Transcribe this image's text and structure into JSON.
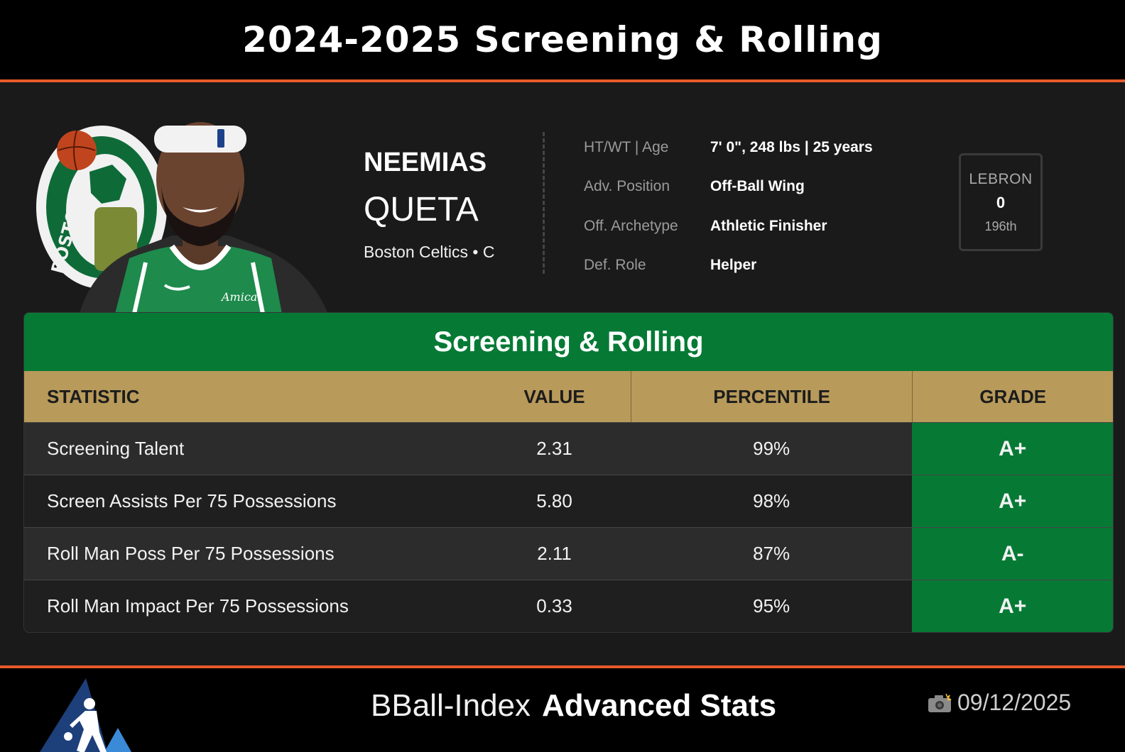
{
  "header": {
    "title": "2024-2025 Screening & Rolling"
  },
  "player": {
    "first_name": "NEEMIAS",
    "last_name": "QUETA",
    "team_position": "Boston Celtics • C",
    "team_logo_icon": "boston-celtics-logo-icon",
    "team_logo_text": "BOSTON",
    "jersey_text": "Amica"
  },
  "info": [
    {
      "label": "HT/WT | Age",
      "value": "7' 0\", 248 lbs | 25 years"
    },
    {
      "label": "Adv. Position",
      "value": "Off-Ball Wing"
    },
    {
      "label": "Off. Archetype",
      "value": "Athletic Finisher"
    },
    {
      "label": "Def. Role",
      "value": "Helper"
    }
  ],
  "lebron": {
    "label": "LEBRON",
    "value": "0",
    "rank": "196th"
  },
  "stats": {
    "title": "Screening & Rolling",
    "columns": [
      "STATISTIC",
      "VALUE",
      "PERCENTILE",
      "GRADE"
    ],
    "rows": [
      {
        "statistic": "Screening Talent",
        "value": "2.31",
        "percentile": "99%",
        "grade": "A+"
      },
      {
        "statistic": "Screen Assists Per 75 Possessions",
        "value": "5.80",
        "percentile": "98%",
        "grade": "A+"
      },
      {
        "statistic": "Roll Man Poss Per 75 Possessions",
        "value": "2.11",
        "percentile": "87%",
        "grade": "A-"
      },
      {
        "statistic": "Roll Man Impact Per 75 Possessions",
        "value": "0.33",
        "percentile": "95%",
        "grade": "A+"
      }
    ]
  },
  "footer": {
    "brand_regular": "BBall-Index",
    "brand_bold": "Advanced Stats",
    "date": "09/12/2025",
    "logo_icon": "bball-index-logo-icon",
    "date_icon": "camera-flash-icon"
  },
  "colors": {
    "accent_orange": "#e85a2a",
    "header_green": "#067a35",
    "column_header_gold": "#b89a5a",
    "background": "#1a1a1a"
  }
}
